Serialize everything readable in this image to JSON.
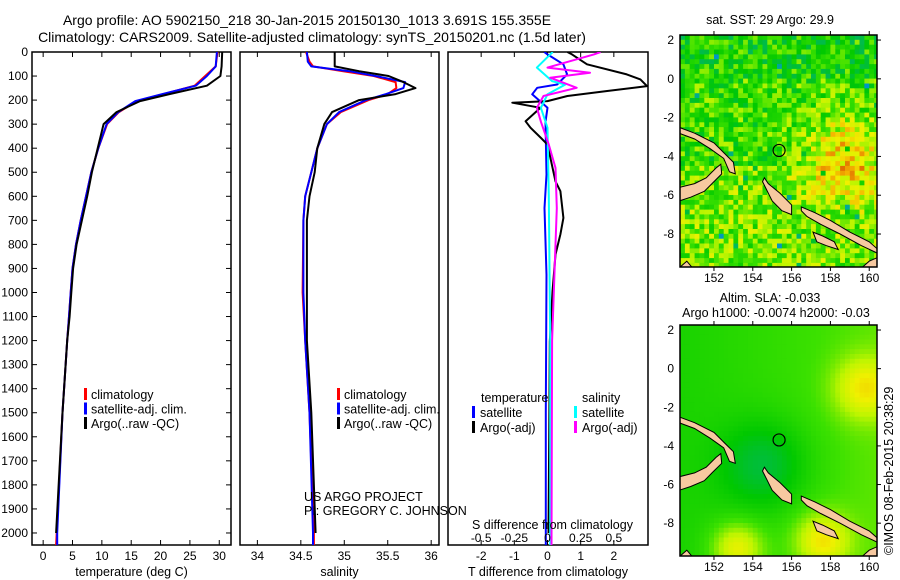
{
  "title": {
    "line1": "Argo profile: AO 5902150_218 30-Jan-2015 20150130_1013 3.691S 155.355E",
    "line2": "Climatology: CARS2009. Satellite-adjusted climatology: synTS_20150201.nc (1.5d later)"
  },
  "credits": {
    "project": "US ARGO PROJECT",
    "pi": "PI: GREGORY C. JOHNSON",
    "stamp": "©IMOS 08-Feb-2015 20:38:29"
  },
  "colors": {
    "climatology": "#ff0000",
    "satellite": "#0000ff",
    "argo": "#000000",
    "sal_satellite": "#00ffff",
    "sal_argo": "#ff00ff",
    "land": "#f7c9a0"
  },
  "chart_data": [
    {
      "type": "line",
      "name": "temperature-profile",
      "xlabel": "temperature (deg C)",
      "ylabel": "",
      "xlim": [
        -1.9,
        32
      ],
      "ylim": [
        2050,
        0
      ],
      "xticks": [
        0,
        5,
        10,
        15,
        20,
        25,
        30
      ],
      "yticks": [
        0,
        100,
        200,
        300,
        400,
        500,
        600,
        700,
        800,
        900,
        1000,
        1100,
        1200,
        1300,
        1400,
        1500,
        1600,
        1700,
        1800,
        1900,
        2000
      ],
      "legend": {
        "position": "lower-middle",
        "entries": [
          "climatology",
          "satellite-adj. clim.",
          "Argo(..raw -QC)"
        ]
      },
      "depth": [
        0,
        60,
        100,
        140,
        175,
        204,
        250,
        300,
        400,
        500,
        600,
        700,
        800,
        900,
        1000,
        1100,
        1200,
        1500,
        2000,
        2050
      ],
      "series": [
        {
          "name": "climatology",
          "color": "#ff0000",
          "values": [
            29.7,
            29.4,
            27.6,
            25.8,
            20.5,
            15.9,
            12.9,
            10.9,
            9.4,
            8.2,
            7.3,
            6.4,
            5.6,
            5.0,
            4.7,
            4.4,
            4.1,
            3.3,
            2.3,
            2.2
          ]
        },
        {
          "name": "satellite-adj. clim.",
          "color": "#0000ff",
          "values": [
            29.6,
            29.4,
            27.9,
            26.0,
            20.3,
            15.7,
            12.8,
            10.8,
            9.4,
            8.2,
            7.3,
            6.4,
            5.6,
            5.0,
            4.7,
            4.4,
            4.1,
            3.3,
            2.4,
            2.4
          ]
        },
        {
          "name": "Argo(..raw -QC)",
          "color": "#000000",
          "values": [
            30.5,
            30.4,
            30.2,
            27.9,
            21.5,
            16.5,
            12.5,
            10.3,
            9.3,
            8.3,
            7.5,
            6.6,
            5.7,
            5.1,
            4.8,
            4.5,
            4.1,
            3.3,
            2.2,
            null
          ]
        }
      ]
    },
    {
      "type": "line",
      "name": "salinity-profile",
      "xlabel": "salinity",
      "xlim": [
        33.8,
        36.09
      ],
      "ylim": [
        2050,
        0
      ],
      "xticks": [
        "34",
        "34.5",
        "35",
        "35.5",
        "36"
      ],
      "legend": {
        "position": "lower-middle",
        "entries": [
          "climatology",
          "satellite-adj. clim.",
          "Argo(..raw -QC)"
        ]
      },
      "depth": [
        0,
        40,
        60,
        80,
        100,
        125,
        150,
        175,
        200,
        250,
        300,
        400,
        500,
        600,
        700,
        1000,
        1200,
        1500,
        2000,
        2050
      ],
      "series": [
        {
          "name": "climatology",
          "color": "#ff0000",
          "values": [
            34.56,
            34.6,
            34.64,
            34.98,
            35.34,
            35.59,
            35.6,
            35.5,
            35.28,
            34.96,
            34.8,
            34.69,
            34.62,
            34.55,
            34.53,
            34.52,
            34.55,
            34.6,
            34.65,
            34.65
          ]
        },
        {
          "name": "satellite-adj. clim.",
          "color": "#0000ff",
          "values": [
            34.57,
            34.58,
            34.62,
            35.06,
            35.36,
            35.7,
            35.68,
            35.48,
            35.25,
            34.94,
            34.8,
            34.69,
            34.62,
            34.55,
            34.53,
            34.53,
            34.55,
            34.6,
            34.64,
            34.64
          ]
        },
        {
          "name": "Argo(..raw -QC)",
          "color": "#000000",
          "values": [
            34.89,
            34.89,
            34.89,
            35.17,
            35.51,
            35.68,
            35.82,
            35.59,
            35.17,
            34.86,
            34.77,
            34.69,
            34.66,
            34.6,
            34.57,
            34.57,
            34.57,
            34.62,
            34.67,
            null
          ]
        }
      ]
    },
    {
      "type": "line",
      "name": "difference-profile",
      "xlabel": "T difference from climatology",
      "x2label": "S difference from climatology",
      "xlim": [
        -3,
        3.03
      ],
      "ylim": [
        2050,
        0
      ],
      "xticks": [
        "-2",
        "-1",
        "0",
        "1",
        "2"
      ],
      "x2ticks": [
        "-0.5",
        "-0.25",
        "0",
        "0.25",
        "0.5"
      ],
      "legend": {
        "position": "lower-middle",
        "headers": [
          "temperature",
          "salinity"
        ],
        "entries": [
          "satellite",
          "Argo(-adj)",
          "satellite",
          "Argo(-adj)"
        ]
      },
      "series": [
        {
          "name": "temperature satellite",
          "variable": "T",
          "color": "#0000ff",
          "depth": [
            0,
            10,
            51,
            93,
            135,
            149,
            176,
            232,
            290,
            510,
            649,
            926,
            1500,
            2050
          ],
          "values": [
            -0.1,
            0,
            0.48,
            0.59,
            0.29,
            -0.31,
            -0.46,
            0,
            -0.06,
            -0.03,
            -0.09,
            -0.03,
            -0.05,
            -0.05
          ]
        },
        {
          "name": "temperature Argo(-adj)",
          "variable": "T",
          "color": "#000000",
          "depth": [
            0,
            10,
            51,
            93,
            114,
            142,
            162,
            183,
            204,
            211,
            232,
            288,
            315,
            357,
            385,
            538,
            579,
            690,
            758,
            842,
            996,
            1204,
            1600,
            2000
          ],
          "values": [
            0.6,
            0.74,
            1.19,
            2.39,
            2.8,
            3.0,
            1.8,
            0.6,
            0,
            -1.06,
            -0.21,
            -0.66,
            -0.51,
            -0.2,
            0,
            0.24,
            0.39,
            0.48,
            0.39,
            0.24,
            0.15,
            0.07,
            0.05,
            0.03
          ]
        },
        {
          "name": "salinity satellite",
          "variable": "S",
          "color": "#00ffff",
          "depth": [
            0,
            10,
            65,
            121,
            135,
            176,
            232,
            315,
            600,
            1200,
            2050
          ],
          "values": [
            0.04,
            0.02,
            -0.08,
            0.035,
            0.135,
            0,
            -0.05,
            0,
            0.01,
            0.02,
            0.02
          ]
        },
        {
          "name": "salinity Argo(-adj)",
          "variable": "S",
          "color": "#ff00ff",
          "depth": [
            0,
            10,
            65,
            86,
            107,
            149,
            183,
            232,
            290,
            385,
            482,
            649,
            800,
            1200,
            2050
          ],
          "values": [
            0.4,
            0.35,
            0,
            0.32,
            0.02,
            0.22,
            -0.03,
            -0.08,
            -0.05,
            0.01,
            0.06,
            0.07,
            0.06,
            0.035,
            0.03
          ]
        }
      ]
    },
    {
      "type": "heatmap",
      "name": "sst-map",
      "title": "sat. SST: 29 Argo: 29.9",
      "xlim": [
        150.25,
        160.4
      ],
      "ylim": [
        -9.7,
        2.26
      ],
      "xticks": [
        152,
        154,
        156,
        158,
        160
      ],
      "yticks": [
        2,
        0,
        -2,
        -4,
        -6,
        -8
      ],
      "argo_position": {
        "lon": 155.355,
        "lat": -3.691
      }
    },
    {
      "type": "heatmap",
      "name": "sla-map",
      "title": "Altim. SLA: -0.033",
      "subtitle": "Argo h1000: -0.0074 h2000: -0.03",
      "xlim": [
        150.25,
        160.4
      ],
      "ylim": [
        -9.7,
        2.26
      ],
      "xticks": [
        152,
        154,
        156,
        158,
        160
      ],
      "yticks": [
        2,
        0,
        -2,
        -4,
        -6,
        -8
      ],
      "argo_position": {
        "lon": 155.355,
        "lat": -3.691
      }
    }
  ]
}
